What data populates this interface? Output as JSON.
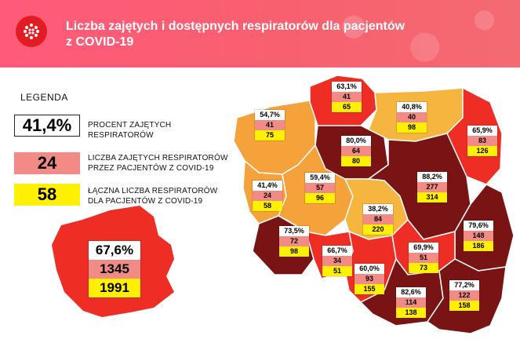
{
  "header": {
    "title_line1": "Liczba zajętych i dostępnych respiratorów dla pacjentów",
    "title_line2": "z COVID-19"
  },
  "legend": {
    "title": "LEGENDA",
    "items": [
      {
        "value": "41,4%",
        "desc1": "PROCENT ZAJĘTYCH",
        "desc2": "RESPIRATORÓW",
        "color": "#ffffff"
      },
      {
        "value": "24",
        "desc1": "LICZBA ZAJĘTYCH RESPIRATORÓW",
        "desc2": "PRZEZ PACJENTÓW Z COVID-19",
        "color": "#f28b86"
      },
      {
        "value": "58",
        "desc1": "ŁĄCZNA LICZBA RESPIRATORÓW",
        "desc2": "DLA PACJENTÓW Z COVID-19",
        "color": "#ffef00"
      }
    ]
  },
  "poland_total": {
    "pct": "67,6%",
    "occupied": "1345",
    "total": "1991"
  },
  "regions": [
    {
      "id": "pomorskie",
      "pct": "63,1%",
      "occupied": "41",
      "total": "65"
    },
    {
      "id": "warminsko-mazurskie",
      "pct": "40,8%",
      "occupied": "40",
      "total": "98"
    },
    {
      "id": "zachodniopomorskie",
      "pct": "54,7%",
      "occupied": "41",
      "total": "75"
    },
    {
      "id": "podlaskie",
      "pct": "65,9%",
      "occupied": "83",
      "total": "126"
    },
    {
      "id": "kujawsko-pomorskie",
      "pct": "80,0%",
      "occupied": "64",
      "total": "80"
    },
    {
      "id": "mazowieckie",
      "pct": "88,2%",
      "occupied": "277",
      "total": "314"
    },
    {
      "id": "lubuskie",
      "pct": "41,4%",
      "occupied": "24",
      "total": "58"
    },
    {
      "id": "wielkopolskie",
      "pct": "59,4%",
      "occupied": "57",
      "total": "96"
    },
    {
      "id": "lodzkie",
      "pct": "38,2%",
      "occupied": "84",
      "total": "220"
    },
    {
      "id": "lubelskie",
      "pct": "79,6%",
      "occupied": "148",
      "total": "186"
    },
    {
      "id": "dolnoslaskie",
      "pct": "73,5%",
      "occupied": "72",
      "total": "98"
    },
    {
      "id": "opolskie",
      "pct": "66,7%",
      "occupied": "34",
      "total": "51"
    },
    {
      "id": "swietokrzyskie",
      "pct": "69,9%",
      "occupied": "51",
      "total": "73"
    },
    {
      "id": "slaskie",
      "pct": "60,0%",
      "occupied": "93",
      "total": "155"
    },
    {
      "id": "malopolskie",
      "pct": "82,6%",
      "occupied": "114",
      "total": "138"
    },
    {
      "id": "podkarpackie",
      "pct": "77,2%",
      "occupied": "122",
      "total": "158"
    }
  ],
  "colors": {
    "header": "#f8606f",
    "low": "#f5a23a",
    "mid": "#ee2d24",
    "high": "#7a1414",
    "total_map": "#ee2d24"
  }
}
